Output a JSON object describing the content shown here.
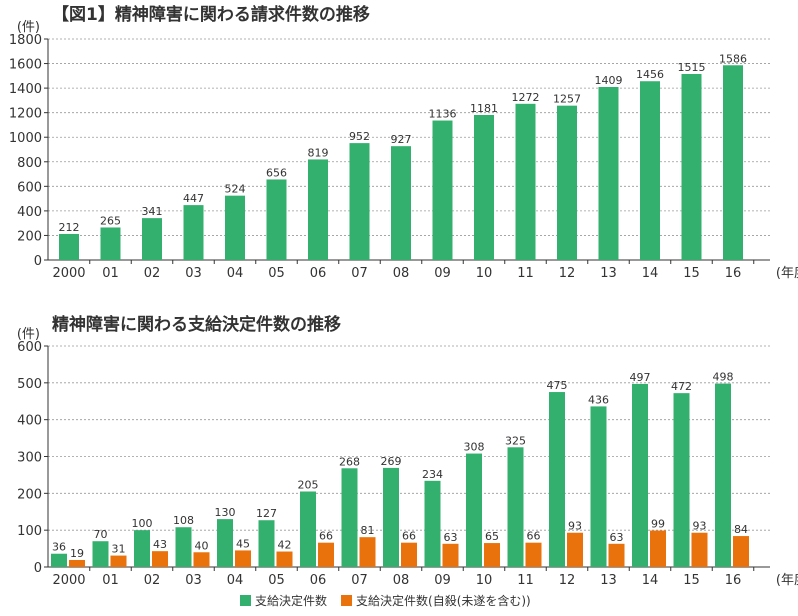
{
  "chart_data": [
    {
      "type": "bar",
      "title": "【図1】精神障害に関わる請求件数の推移",
      "ylabel": "(件)",
      "xlabel": "(年度)",
      "categories": [
        "2000",
        "01",
        "02",
        "03",
        "04",
        "05",
        "06",
        "07",
        "08",
        "09",
        "10",
        "11",
        "12",
        "13",
        "14",
        "15",
        "16"
      ],
      "values": [
        212,
        265,
        341,
        447,
        524,
        656,
        819,
        952,
        927,
        1136,
        1181,
        1272,
        1257,
        1409,
        1456,
        1515,
        1586
      ],
      "ylim": [
        0,
        1800
      ],
      "yticks": [
        0,
        200,
        400,
        600,
        800,
        1000,
        1200,
        1400,
        1600,
        1800
      ],
      "grid": true,
      "color": "#33b06e"
    },
    {
      "type": "bar",
      "title": "精神障害に関わる支給決定件数の推移",
      "ylabel": "(件)",
      "xlabel": "(年度)",
      "categories": [
        "2000",
        "01",
        "02",
        "03",
        "04",
        "05",
        "06",
        "07",
        "08",
        "09",
        "10",
        "11",
        "12",
        "13",
        "14",
        "15",
        "16"
      ],
      "series": [
        {
          "name": "支給決定件数",
          "color": "#33b06e",
          "values": [
            36,
            70,
            100,
            108,
            130,
            127,
            205,
            268,
            269,
            234,
            308,
            325,
            475,
            436,
            497,
            472,
            498
          ]
        },
        {
          "name": "支給決定件数(自殺(未遂を含む))",
          "color": "#ea720c",
          "values": [
            19,
            31,
            43,
            40,
            45,
            42,
            66,
            81,
            66,
            63,
            65,
            66,
            93,
            63,
            99,
            93,
            84
          ]
        }
      ],
      "ylim": [
        0,
        600
      ],
      "yticks": [
        0,
        100,
        200,
        300,
        400,
        500,
        600
      ],
      "grid": true,
      "legend": "bottom"
    }
  ]
}
